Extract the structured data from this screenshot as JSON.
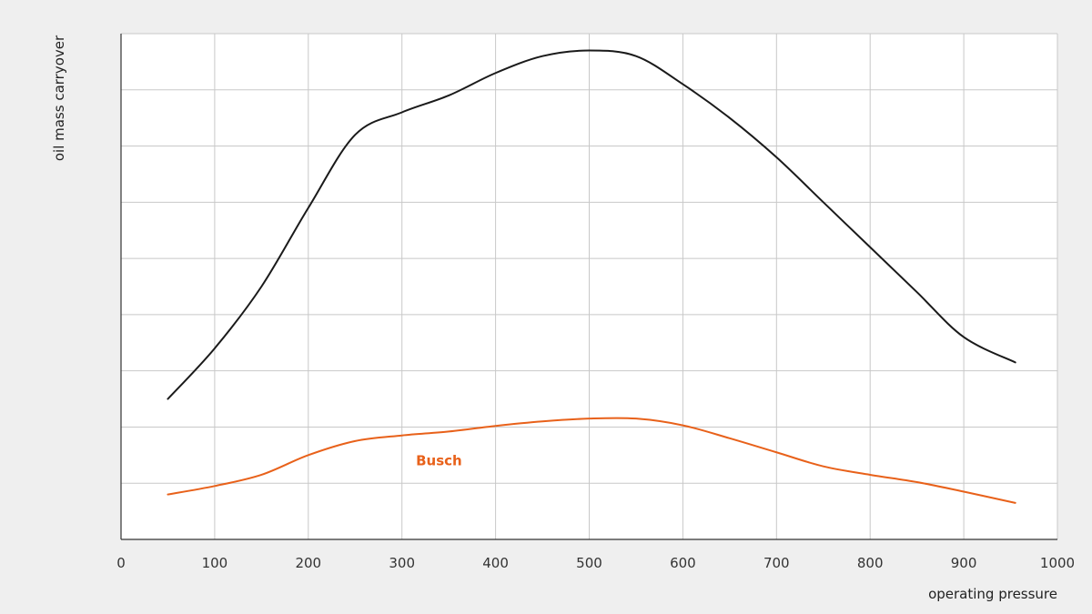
{
  "chart_data": {
    "type": "line",
    "xlabel": "operating pressure",
    "ylabel": "oil mass carryover",
    "xlim": [
      0,
      1000
    ],
    "ylim": [
      0,
      9
    ],
    "x_ticks": [
      "0",
      "100",
      "200",
      "300",
      "400",
      "500",
      "600",
      "700",
      "800",
      "900",
      "1000"
    ],
    "grid": true,
    "y_tick_labels_shown": false,
    "series": [
      {
        "color": "#1a1a1a",
        "x": [
          50,
          100,
          150,
          200,
          250,
          300,
          350,
          400,
          450,
          500,
          550,
          600,
          650,
          700,
          750,
          800,
          850,
          900,
          955
        ],
        "y": [
          2.5,
          3.4,
          4.5,
          5.9,
          7.2,
          7.6,
          7.9,
          8.3,
          8.6,
          8.7,
          8.6,
          8.1,
          7.5,
          6.8,
          6.0,
          5.2,
          4.4,
          3.6,
          3.15
        ]
      },
      {
        "name": "Busch",
        "color": "#e8611a",
        "label_at": [
          315,
          1.4
        ],
        "x": [
          50,
          100,
          150,
          200,
          250,
          300,
          350,
          400,
          450,
          500,
          550,
          600,
          650,
          700,
          750,
          800,
          850,
          900,
          955
        ],
        "y": [
          0.8,
          0.95,
          1.15,
          1.5,
          1.75,
          1.85,
          1.92,
          2.02,
          2.1,
          2.15,
          2.15,
          2.03,
          1.8,
          1.55,
          1.3,
          1.15,
          1.02,
          0.85,
          0.65
        ]
      }
    ]
  }
}
